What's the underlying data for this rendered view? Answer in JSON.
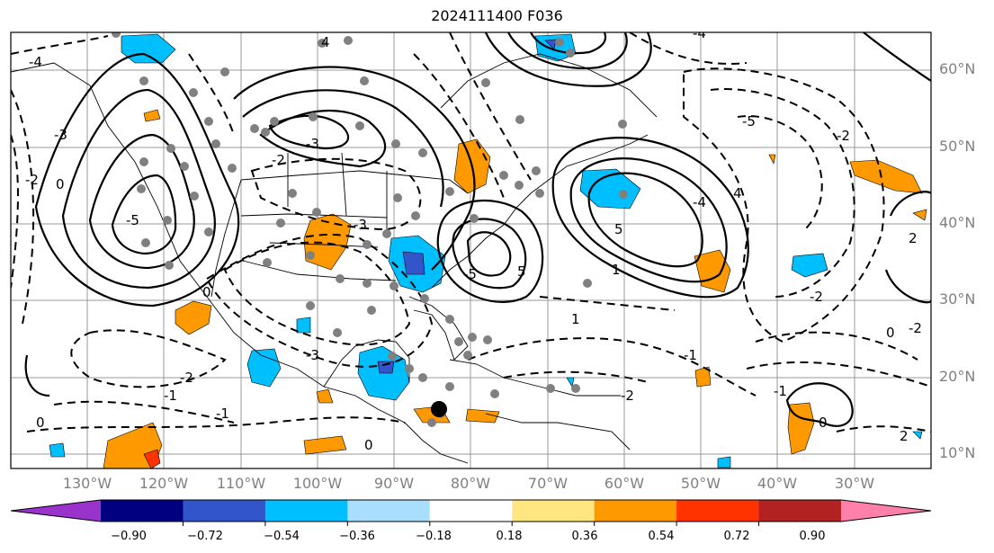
{
  "title": "2024111400 F036",
  "lat_labels": [
    "60°N",
    "50°N",
    "40°N",
    "30°N",
    "20°N",
    "10°N"
  ],
  "lon_labels": [
    "130°W",
    "120°W",
    "110°W",
    "100°W",
    "90°W",
    "80°W",
    "70°W",
    "60°W",
    "50°W",
    "40°W",
    "30°W"
  ],
  "colorbar": {
    "ticks": [
      "−0.90",
      "−0.72",
      "−0.54",
      "−0.36",
      "−0.18",
      "0.18",
      "0.36",
      "0.54",
      "0.72",
      "0.90"
    ],
    "colors": [
      "#9933cc",
      "#000080",
      "#3355cc",
      "#00bfff",
      "#aadeff",
      "#ffffff",
      "#ffe680",
      "#ff9900",
      "#ff3300",
      "#b22222",
      "#ff80aa"
    ]
  },
  "contour_labels": [
    "-4",
    "4",
    "-3",
    "-2",
    "0",
    "-3",
    "-2",
    "-5",
    "5",
    "-4",
    "-2",
    "5",
    "-5",
    "4",
    "-1",
    "-2",
    "-3",
    "-3",
    "0",
    "-5",
    "-4",
    "-2",
    "2",
    "-1",
    "1",
    "0",
    "-2",
    "1",
    "0",
    "-1",
    "0",
    "2",
    "-1",
    "-2",
    "0"
  ]
}
